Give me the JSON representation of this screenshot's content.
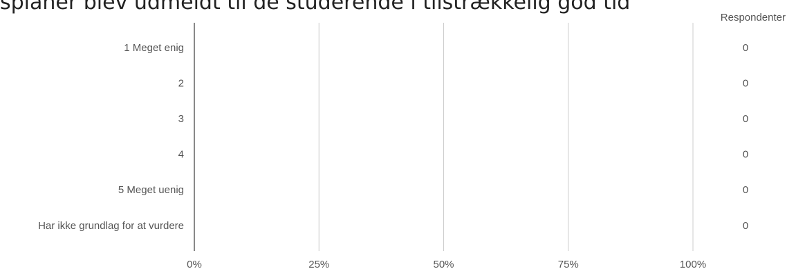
{
  "title": "splaner blev udmeldt til de studerende i tilstrækkelig god tid",
  "chart_data": {
    "type": "bar",
    "orientation": "horizontal",
    "categories": [
      "1 Meget enig",
      "2",
      "3",
      "4",
      "5 Meget uenig",
      "Har ikke grundlag for at vurdere"
    ],
    "values": [
      0,
      0,
      0,
      0,
      0,
      0
    ],
    "counts": [
      "0",
      "0",
      "0",
      "0",
      "0",
      "0"
    ],
    "count_header": "Respondenter",
    "x_ticks": [
      "0%",
      "25%",
      "50%",
      "75%",
      "100%"
    ],
    "xlim": [
      0,
      100
    ],
    "grid": true,
    "colors": {
      "bar": "#4285f4",
      "grid": "#cccccc",
      "axis": "#888888",
      "text": "#555555"
    }
  }
}
